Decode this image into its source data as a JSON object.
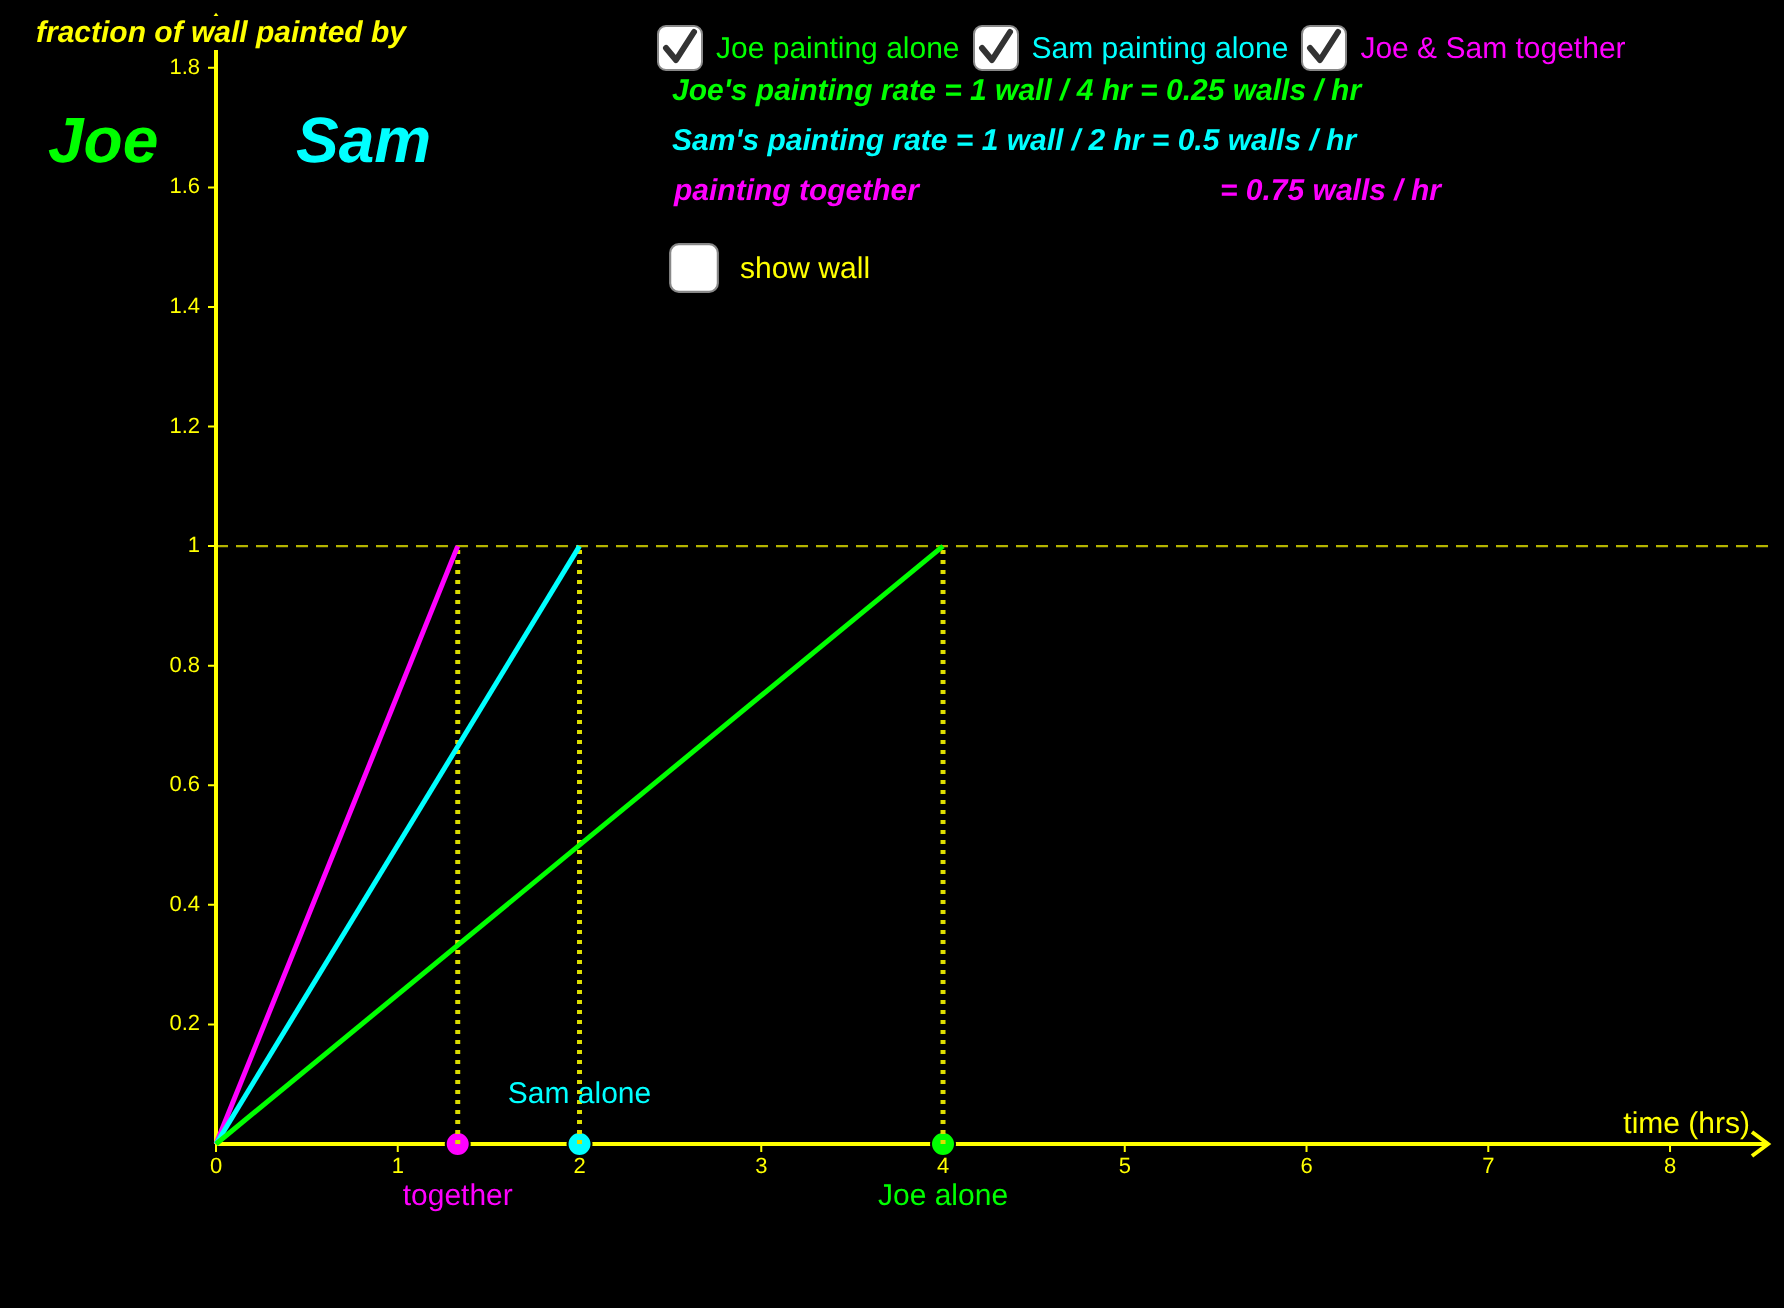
{
  "chart_data": {
    "type": "line",
    "ylabel": "fraction of wall painted by",
    "xlabel": "time (hrs)",
    "xlim": [
      0,
      8.55
    ],
    "ylim": [
      0,
      1.89
    ],
    "xticks": [
      0,
      1,
      2,
      3,
      4,
      5,
      6,
      7,
      8
    ],
    "yticks": [
      0.2,
      0.4,
      0.6,
      0.8,
      1,
      1.2,
      1.4,
      1.6,
      1.8
    ],
    "legend": "top",
    "marker": "none",
    "series": [
      {
        "name": "Joe painting alone",
        "color": "#00ff00",
        "x": [
          0,
          4
        ],
        "values": [
          0,
          1
        ]
      },
      {
        "name": "Sam painting alone",
        "color": "#00ffff",
        "x": [
          0,
          2
        ],
        "values": [
          0,
          1
        ]
      },
      {
        "name": "Joe & Sam together",
        "color": "#ff00ff",
        "x": [
          0,
          1.33
        ],
        "values": [
          0,
          1
        ]
      },
      {
        "color": "#dddd00",
        "x": [
          1.33,
          1.33
        ],
        "values": [
          0,
          1
        ],
        "line_style": "dotted"
      },
      {
        "color": "#dddd00",
        "x": [
          2,
          2
        ],
        "values": [
          0,
          1
        ],
        "line_style": "dotted"
      },
      {
        "color": "#dddd00",
        "x": [
          4,
          4
        ],
        "values": [
          0,
          1
        ],
        "line_style": "dotted"
      },
      {
        "type": "scatter",
        "marker": "circle",
        "x": [
          1.33,
          2,
          4
        ],
        "values": [
          0,
          0,
          0
        ],
        "colors": [
          "#ff00ff",
          "#00ffff",
          "#00ff00"
        ]
      }
    ],
    "ref_lines": [
      {
        "axis": "y",
        "value": 1,
        "color": "#b3b300",
        "line_style": "dashed"
      }
    ],
    "annotations": [
      "Joe",
      "Sam",
      "Joe's painting rate = 1 wall / 4 hr = 0.25 walls / hr",
      "Sam's painting rate = 1 wall / 2 hr = 0.5 walls / hr",
      "painting together",
      "= 0.75 walls / hr",
      "show wall",
      {
        "text": "together",
        "x": 1.33,
        "y": 0
      },
      {
        "text": "Sam alone",
        "x": 2,
        "y": 0
      },
      {
        "text": "Joe alone",
        "x": 4,
        "y": 0
      }
    ]
  }
}
